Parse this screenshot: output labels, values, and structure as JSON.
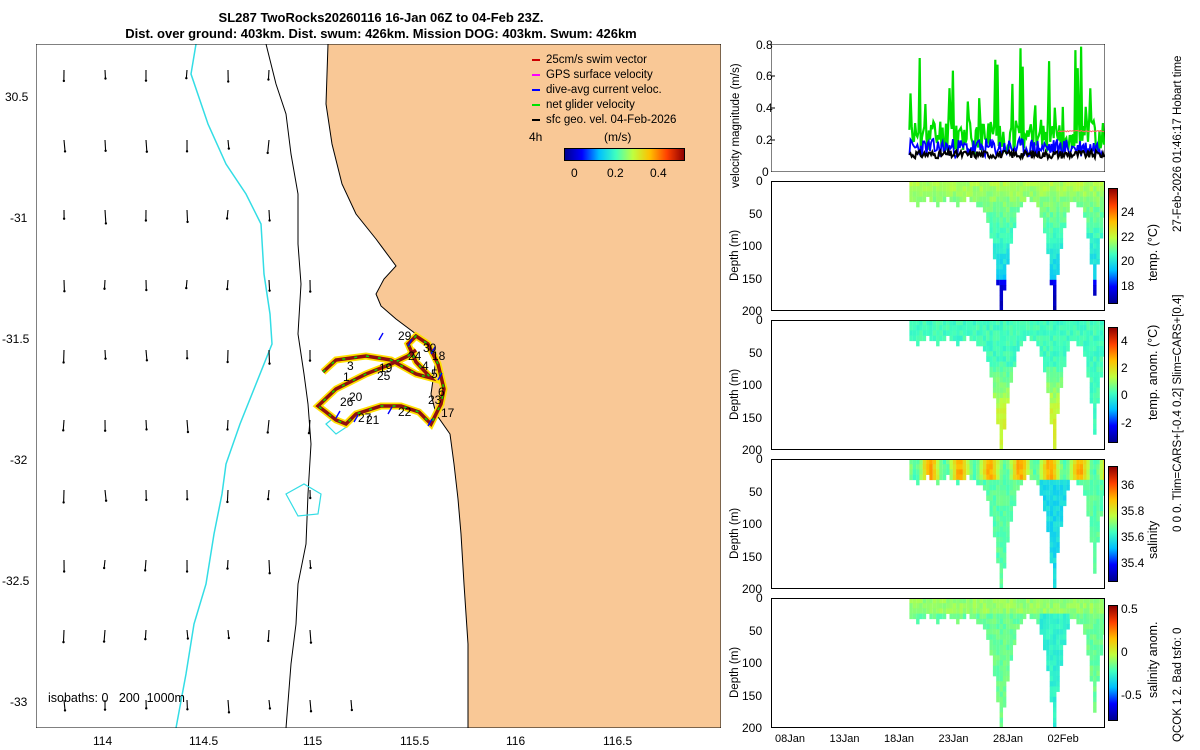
{
  "header": {
    "title_line1": "SL287 TwoRocks20260116 16-Jan 06Z to 04-Feb 23Z.",
    "title_line2": "Dist. over ground: 403km. Dist. swum: 426km. Mission DOG: 403km. Swum: 426km"
  },
  "map": {
    "legend": [
      {
        "label": "25cm/s swim vector",
        "color": "#cc0000"
      },
      {
        "label": "GPS surface velocity",
        "color": "#ff00ff"
      },
      {
        "label": "dive-avg current veloc.",
        "color": "#0000ff"
      },
      {
        "label": "net glider velocity",
        "color": "#00e000"
      },
      {
        "label": "sfc geo. vel. 04-Feb-2026",
        "color": "#000000"
      }
    ],
    "interval_label": "4h",
    "colorbar_unit": "(m/s)",
    "colorbar_ticks": [
      "0",
      "0.2",
      "0.4"
    ],
    "isobaths_label": "isobaths: 0   200  1000m",
    "x_ticks": [
      "114",
      "114.5",
      "115",
      "115.5",
      "116",
      "116.5"
    ],
    "y_ticks": [
      "30.5",
      "-31",
      "-31.5",
      "-32",
      "-32.5",
      "-33"
    ],
    "track_labels": [
      "29",
      "30",
      "24",
      "18",
      "3",
      "1",
      "19",
      "25",
      "4",
      "5",
      "6",
      "26",
      "20",
      "23",
      "27",
      "21",
      "22",
      "17"
    ],
    "land_color": "#f9c896",
    "isobath_color": "#33dde5"
  },
  "chart_data": [
    {
      "type": "line",
      "title": "velocity magnitude",
      "ylabel": "velocity magnitude (m/s)",
      "ylim": [
        0,
        0.8
      ],
      "y_ticks": [
        "0",
        "0.2",
        "0.4",
        "0.6",
        "0.8"
      ],
      "xlim_days": [
        0,
        35
      ],
      "series": [
        {
          "name": "net glider velocity",
          "color": "#00e000"
        },
        {
          "name": "dive-avg current veloc.",
          "color": "#0000ff"
        },
        {
          "name": "sfc geo. vel.",
          "color": "#000000"
        },
        {
          "name": "swim speed",
          "color": "#ff6060"
        }
      ]
    },
    {
      "type": "heatmap",
      "ylabel": "Depth (m)",
      "y_ticks": [
        "0",
        "50",
        "100",
        "150",
        "200"
      ],
      "colorbar_label": "temp. (°C)",
      "colorbar_ticks": [
        "18",
        "20",
        "22",
        "24"
      ],
      "vmin": 16.5,
      "vmax": 26
    },
    {
      "type": "heatmap",
      "ylabel": "Depth (m)",
      "y_ticks": [
        "0",
        "50",
        "100",
        "150",
        "200"
      ],
      "colorbar_label": "temp. anom. (°C)",
      "colorbar_ticks": [
        "-2",
        "0",
        "2",
        "4"
      ],
      "vmin": -3.5,
      "vmax": 5
    },
    {
      "type": "heatmap",
      "ylabel": "Depth (m)",
      "y_ticks": [
        "0",
        "50",
        "100",
        "150",
        "200"
      ],
      "colorbar_label": "salinity",
      "colorbar_ticks": [
        "35.4",
        "35.6",
        "35.8",
        "36"
      ],
      "vmin": 35.25,
      "vmax": 36.15
    },
    {
      "type": "heatmap",
      "ylabel": "Depth (m)",
      "y_ticks": [
        "0",
        "50",
        "100",
        "150",
        "200"
      ],
      "colorbar_label": "salinity anom.",
      "colorbar_ticks": [
        "-0.5",
        "0",
        "0.5"
      ],
      "vmin": -0.8,
      "vmax": 0.55,
      "x_ticks": [
        "08Jan",
        "13Jan",
        "18Jan",
        "23Jan",
        "28Jan",
        "02Feb"
      ]
    }
  ],
  "side_notes": {
    "note1": "27-Feb-2026 01:46:17 Hobart time",
    "note2": "0 0 0. Tlim=CARS+[-0.4 0.2] Slim=CARS+[0.4]",
    "note3": "QCOK 1  2. Bad tsfo: 0"
  }
}
